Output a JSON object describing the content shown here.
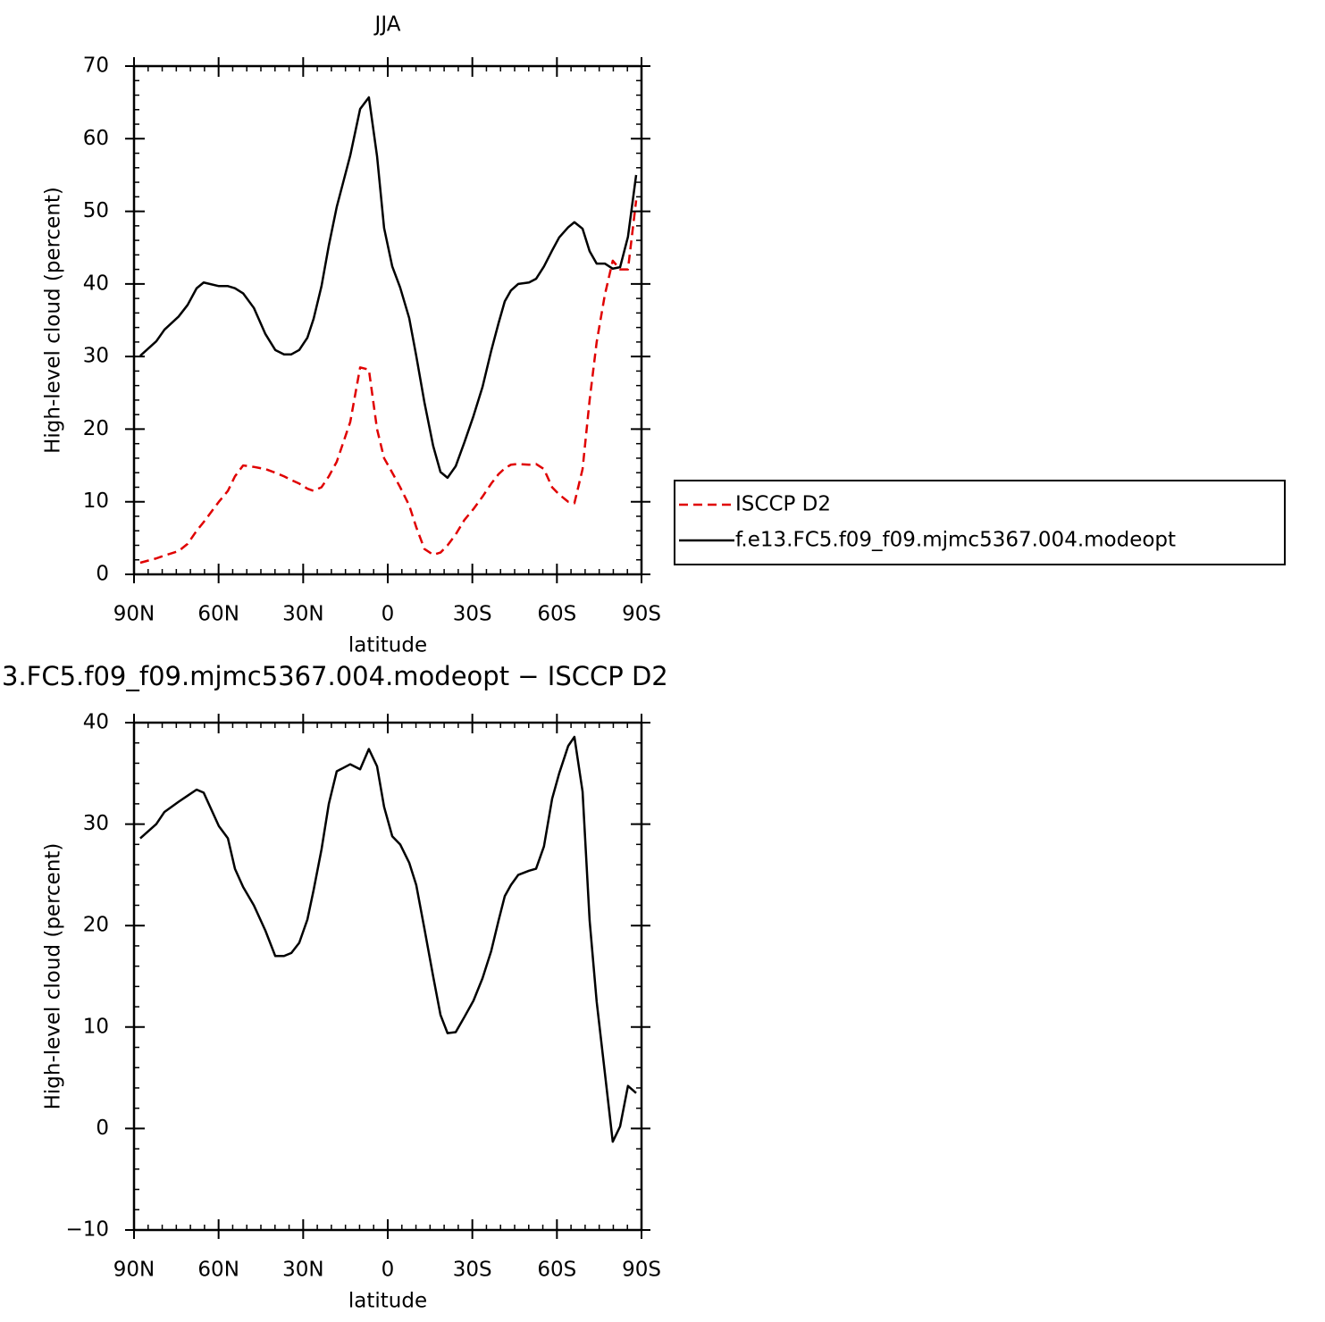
{
  "chart_data": [
    {
      "type": "line",
      "title": "JJA",
      "xlabel": "latitude",
      "ylabel": "High-level cloud (percent)",
      "x": [
        87.8,
        82.1,
        79.2,
        74.2,
        71.0,
        67.8,
        65.3,
        59.9,
        56.7,
        54.2,
        51.3,
        47.5,
        43.4,
        39.9,
        36.8,
        34.2,
        31.4,
        28.5,
        26.3,
        23.5,
        20.9,
        18.1,
        13.3,
        9.8,
        6.7,
        3.8,
        1.3,
        -1.6,
        -4.4,
        -7.6,
        -10.1,
        -13.0,
        -16.1,
        -18.7,
        -21.2,
        -24.1,
        -27.2,
        -30.4,
        -33.6,
        -36.7,
        -39.3,
        -41.5,
        -43.7,
        -46.3,
        -50.1,
        -52.6,
        -55.4,
        -58.3,
        -60.8,
        -64.0,
        -66.2,
        -69.1,
        -71.6,
        -74.1,
        -77.0,
        -79.8,
        -82.4,
        -85.2,
        -88.1
      ],
      "xlim": [
        90,
        -90
      ],
      "xticks": [
        {
          "value": 90,
          "label": "90N"
        },
        {
          "value": 60,
          "label": "60N"
        },
        {
          "value": 30,
          "label": "30N"
        },
        0,
        {
          "value": -30,
          "label": "30S"
        },
        {
          "value": -60,
          "label": "60S"
        },
        {
          "value": -90,
          "label": "90S"
        }
      ],
      "ylim": [
        0,
        70
      ],
      "yticks": [
        0,
        10,
        20,
        30,
        40,
        50,
        60,
        70
      ],
      "legend": "right",
      "series": [
        {
          "name": "ISCCP D2",
          "color": "#e00000",
          "dash": true,
          "values": [
            1.6,
            2.2,
            2.6,
            3.2,
            4.2,
            6.0,
            7.2,
            10.0,
            11.5,
            13.5,
            15.0,
            14.8,
            14.5,
            14.0,
            13.5,
            13.0,
            12.5,
            11.8,
            11.5,
            12.0,
            13.5,
            15.5,
            21.0,
            28.5,
            28.2,
            20.0,
            16.0,
            14.0,
            12.0,
            9.5,
            6.5,
            3.5,
            2.7,
            3.0,
            4.0,
            5.5,
            7.5,
            9.0,
            10.7,
            12.5,
            13.8,
            14.6,
            15.1,
            15.2,
            15.1,
            15.2,
            14.5,
            12.0,
            11.0,
            10.0,
            9.8,
            14.5,
            24.0,
            32.0,
            38.5,
            43.2,
            42.0,
            42.0,
            51.5
          ]
        },
        {
          "name": "f.e13.FC5.f09_f09.mjmc5367.004.modeopt",
          "color": "#000000",
          "dash": false,
          "values": [
            30.1,
            32.1,
            33.7,
            35.5,
            37.1,
            39.4,
            40.2,
            39.7,
            39.7,
            39.4,
            38.7,
            36.7,
            33.1,
            30.9,
            30.3,
            30.3,
            30.9,
            32.6,
            35.2,
            39.7,
            45.3,
            50.6,
            57.7,
            64.1,
            65.7,
            57.6,
            47.7,
            42.4,
            39.5,
            35.3,
            30.1,
            23.7,
            17.7,
            14.1,
            13.3,
            14.9,
            18.2,
            21.8,
            25.8,
            30.8,
            34.6,
            37.6,
            39.1,
            40.0,
            40.2,
            40.7,
            42.4,
            44.6,
            46.4,
            47.8,
            48.5,
            47.6,
            44.5,
            42.8,
            42.8,
            42.1,
            42.3,
            46.5,
            55.0
          ]
        }
      ]
    },
    {
      "type": "line",
      "title": "3.FC5.f09_f09.mjmc5367.004.modeopt − ISCCP D2",
      "xlabel": "latitude",
      "ylabel": "High-level cloud (percent)",
      "x": [
        87.8,
        82.1,
        79.2,
        74.2,
        71.0,
        67.8,
        65.3,
        59.9,
        56.7,
        54.2,
        51.3,
        47.5,
        43.4,
        39.9,
        36.8,
        34.2,
        31.4,
        28.5,
        26.3,
        23.5,
        20.9,
        18.1,
        13.3,
        9.8,
        6.7,
        3.8,
        1.3,
        -1.6,
        -4.4,
        -7.6,
        -10.1,
        -13.0,
        -16.1,
        -18.7,
        -21.2,
        -24.1,
        -27.2,
        -30.4,
        -33.6,
        -36.7,
        -39.3,
        -41.5,
        -43.7,
        -46.3,
        -50.1,
        -52.6,
        -55.4,
        -58.3,
        -60.8,
        -64.0,
        -66.2,
        -69.1,
        -71.6,
        -74.1,
        -77.0,
        -79.8,
        -82.4,
        -85.2,
        -88.1
      ],
      "xlim": [
        90,
        -90
      ],
      "xticks": [
        {
          "value": 90,
          "label": "90N"
        },
        {
          "value": 60,
          "label": "60N"
        },
        {
          "value": 30,
          "label": "30N"
        },
        0,
        {
          "value": -30,
          "label": "30S"
        },
        {
          "value": -60,
          "label": "60S"
        },
        {
          "value": -90,
          "label": "90S"
        }
      ],
      "ylim": [
        -10,
        40
      ],
      "yticks": [
        {
          "value": -10,
          "label": "−10"
        },
        0,
        10,
        20,
        30,
        40
      ],
      "series": [
        {
          "color": "#000000",
          "dash": false,
          "values": [
            28.6,
            30.0,
            31.2,
            32.2,
            32.8,
            33.4,
            33.1,
            29.8,
            28.6,
            25.6,
            23.8,
            22.0,
            19.5,
            17.0,
            17.0,
            17.3,
            18.3,
            20.6,
            23.5,
            27.5,
            32.0,
            35.2,
            35.9,
            35.4,
            37.4,
            35.7,
            31.7,
            28.8,
            28.0,
            26.2,
            24.0,
            19.7,
            15.0,
            11.2,
            9.4,
            9.5,
            11.0,
            12.6,
            14.8,
            17.5,
            20.5,
            22.9,
            24.0,
            25.0,
            25.4,
            25.6,
            27.8,
            32.5,
            35.0,
            37.7,
            38.6,
            33.2,
            20.5,
            12.5,
            5.5,
            -1.3,
            0.2,
            4.2,
            3.5
          ]
        }
      ]
    }
  ]
}
